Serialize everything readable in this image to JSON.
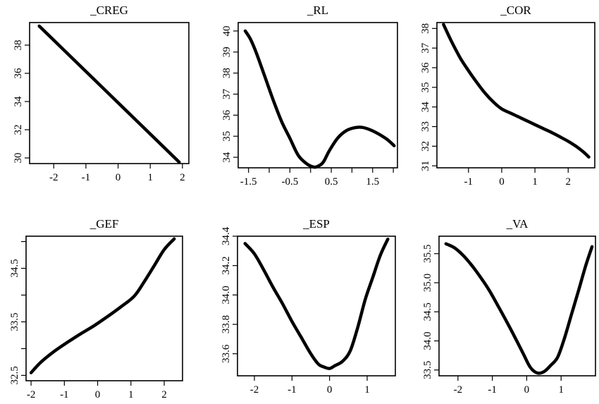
{
  "chart_data": [
    {
      "type": "line",
      "title": "_CREG",
      "xlabel": "",
      "ylabel": "",
      "xlim": [
        -2.75,
        2.2
      ],
      "ylim": [
        29.6,
        39.6
      ],
      "xticks": [
        -2,
        -1,
        0,
        1,
        2
      ],
      "xtick_labels": [
        "-2",
        "-1",
        "0",
        "1",
        "2"
      ],
      "yticks": [
        30,
        32,
        34,
        36,
        38
      ],
      "ytick_labels": [
        "30",
        "32",
        "34",
        "36",
        "38"
      ],
      "x": [
        -2.45,
        1.9
      ],
      "y": [
        39.35,
        29.7
      ]
    },
    {
      "type": "line",
      "title": "_RL",
      "xlabel": "",
      "ylabel": "",
      "xlim": [
        -1.75,
        2.1
      ],
      "ylim": [
        33.5,
        40.4
      ],
      "xticks": [
        -1.5,
        -1.0,
        -0.5,
        0.0,
        0.5,
        1.0,
        1.5,
        2.0
      ],
      "xtick_labels": [
        "-1.5",
        "",
        "-0.5",
        "",
        "0.5",
        "",
        "1.5",
        ""
      ],
      "yticks": [
        34,
        35,
        36,
        37,
        38,
        39,
        40
      ],
      "ytick_labels": [
        "34",
        "35",
        "36",
        "37",
        "38",
        "39",
        "40"
      ],
      "x": [
        -1.58,
        -1.45,
        -1.3,
        -1.1,
        -0.9,
        -0.7,
        -0.5,
        -0.3,
        -0.1,
        0.05,
        0.15,
        0.3,
        0.45,
        0.65,
        0.85,
        1.05,
        1.25,
        1.45,
        1.65,
        1.85,
        2.02
      ],
      "y": [
        40.0,
        39.6,
        38.9,
        37.8,
        36.7,
        35.7,
        34.9,
        34.1,
        33.7,
        33.55,
        33.55,
        33.75,
        34.3,
        34.9,
        35.25,
        35.4,
        35.42,
        35.3,
        35.1,
        34.85,
        34.55
      ]
    },
    {
      "type": "line",
      "title": "_COR",
      "xlabel": "",
      "ylabel": "",
      "xlim": [
        -1.95,
        2.8
      ],
      "ylim": [
        30.9,
        38.3
      ],
      "xticks": [
        -1,
        0,
        1,
        2
      ],
      "xtick_labels": [
        "-1",
        "0",
        "1",
        "2"
      ],
      "yticks": [
        31,
        32,
        33,
        34,
        35,
        36,
        37,
        38
      ],
      "ytick_labels": [
        "31",
        "32",
        "33",
        "34",
        "35",
        "36",
        "37",
        "38"
      ],
      "x": [
        -1.75,
        -1.5,
        -1.25,
        -1.0,
        -0.75,
        -0.5,
        -0.25,
        0.0,
        0.25,
        0.5,
        0.75,
        1.0,
        1.25,
        1.5,
        1.75,
        2.0,
        2.25,
        2.45,
        2.62
      ],
      "y": [
        38.2,
        37.3,
        36.5,
        35.85,
        35.25,
        34.7,
        34.25,
        33.9,
        33.7,
        33.5,
        33.3,
        33.1,
        32.9,
        32.7,
        32.48,
        32.25,
        31.98,
        31.72,
        31.45
      ]
    },
    {
      "type": "line",
      "title": "_GEF",
      "xlabel": "",
      "ylabel": "",
      "xlim": [
        -2.15,
        2.55
      ],
      "ylim": [
        32.4,
        35.1
      ],
      "xticks": [
        -2,
        -1,
        0,
        1,
        2
      ],
      "xtick_labels": [
        "-2",
        "-1",
        "0",
        "1",
        "2"
      ],
      "yticks": [
        32.5,
        33.0,
        33.5,
        34.0,
        34.5,
        35.0
      ],
      "ytick_labels": [
        "32.5",
        "",
        "33.5",
        "",
        "34.5",
        ""
      ],
      "x": [
        -2.0,
        -1.7,
        -1.3,
        -0.9,
        -0.5,
        -0.1,
        0.3,
        0.7,
        1.1,
        1.4,
        1.7,
        2.0,
        2.3
      ],
      "y": [
        32.55,
        32.75,
        32.95,
        33.12,
        33.28,
        33.43,
        33.6,
        33.78,
        33.98,
        34.25,
        34.55,
        34.85,
        35.05
      ]
    },
    {
      "type": "line",
      "title": "_ESP",
      "xlabel": "",
      "ylabel": "",
      "xlim": [
        -2.45,
        1.75
      ],
      "ylim": [
        33.45,
        34.4
      ],
      "xticks": [
        -2,
        -1,
        0,
        1
      ],
      "xtick_labels": [
        "-2",
        "-1",
        "0",
        "1"
      ],
      "yticks": [
        33.6,
        33.8,
        34.0,
        34.2,
        34.4
      ],
      "ytick_labels": [
        "33.6",
        "33.8",
        "34.0",
        "34.2",
        "34.4"
      ],
      "x": [
        -2.25,
        -2.0,
        -1.75,
        -1.5,
        -1.25,
        -1.0,
        -0.75,
        -0.5,
        -0.3,
        -0.15,
        0.0,
        0.15,
        0.35,
        0.55,
        0.75,
        0.95,
        1.15,
        1.35,
        1.55
      ],
      "y": [
        34.35,
        34.28,
        34.17,
        34.05,
        33.94,
        33.82,
        33.71,
        33.6,
        33.53,
        33.51,
        33.5,
        33.52,
        33.55,
        33.62,
        33.78,
        33.97,
        34.12,
        34.27,
        34.38
      ]
    },
    {
      "type": "line",
      "title": "_VA",
      "xlabel": "",
      "ylabel": "",
      "xlim": [
        -2.55,
        2.0
      ],
      "ylim": [
        33.4,
        35.8
      ],
      "xticks": [
        -2,
        -1,
        0,
        1
      ],
      "xtick_labels": [
        "-2",
        "-1",
        "0",
        "1"
      ],
      "yticks": [
        33.5,
        34.0,
        34.5,
        35.0,
        35.5
      ],
      "ytick_labels": [
        "33.5",
        "34.0",
        "34.5",
        "35.0",
        "35.5"
      ],
      "x": [
        -2.35,
        -2.1,
        -1.85,
        -1.6,
        -1.35,
        -1.1,
        -0.85,
        -0.6,
        -0.35,
        -0.1,
        0.1,
        0.3,
        0.5,
        0.7,
        0.9,
        1.1,
        1.3,
        1.5,
        1.72,
        1.9
      ],
      "y": [
        35.67,
        35.6,
        35.47,
        35.3,
        35.1,
        34.88,
        34.62,
        34.35,
        34.07,
        33.78,
        33.55,
        33.45,
        33.47,
        33.58,
        33.72,
        34.05,
        34.45,
        34.85,
        35.3,
        35.62
      ]
    }
  ]
}
